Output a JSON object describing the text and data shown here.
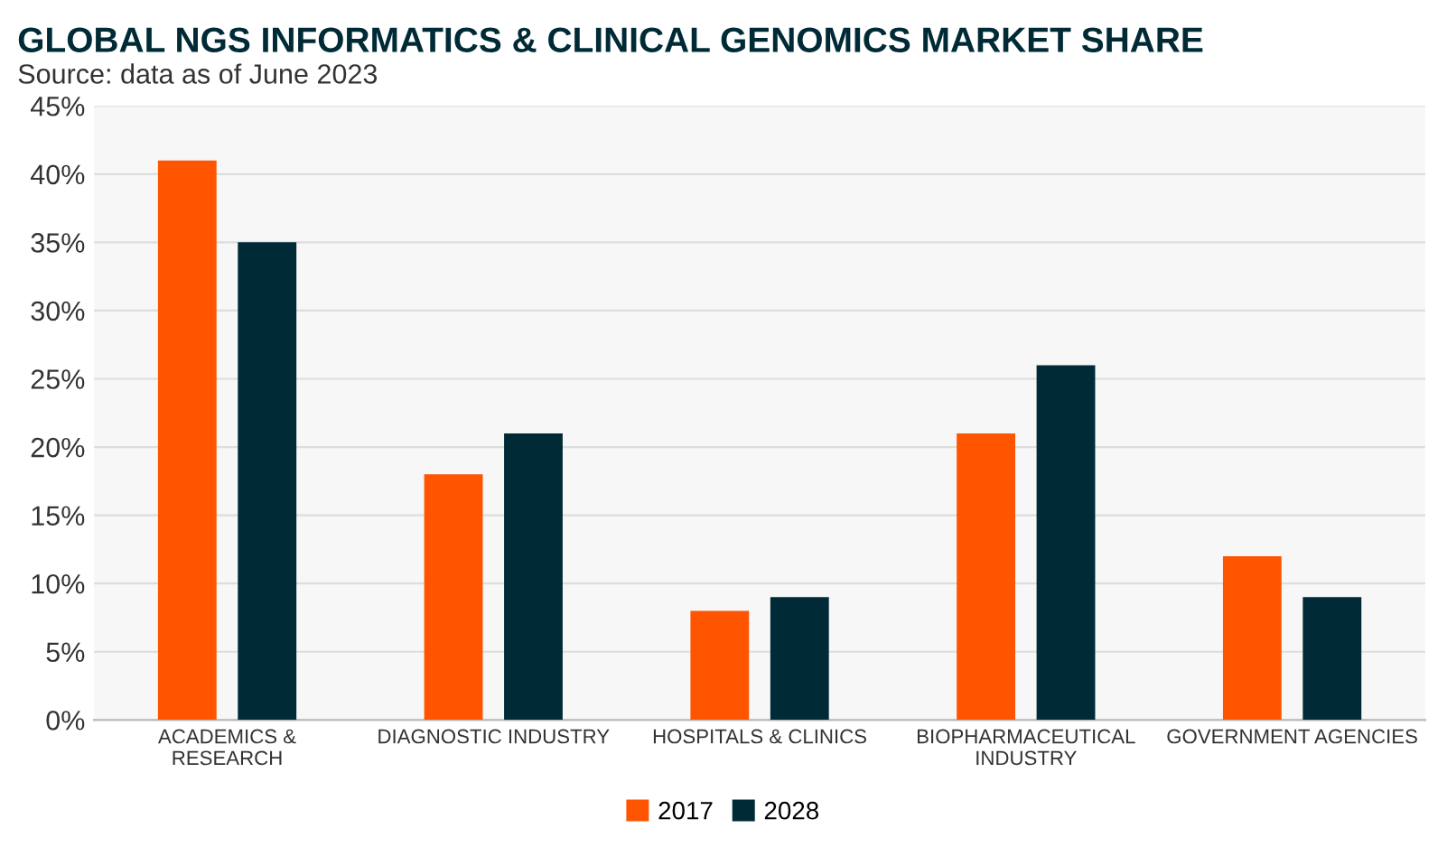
{
  "chart_data": {
    "type": "bar",
    "title": "GLOBAL NGS INFORMATICS & CLINICAL GENOMICS MARKET SHARE",
    "subtitle": "Source: data as of June 2023",
    "categories": [
      "ACADEMICS & RESEARCH",
      "DIAGNOSTIC INDUSTRY",
      "HOSPITALS & CLINICS",
      "BIOPHARMACEUTICAL INDUSTRY",
      "GOVERNMENT AGENCIES"
    ],
    "series": [
      {
        "name": "2017",
        "color": "#ff5500",
        "values": [
          41,
          18,
          8,
          21,
          12
        ]
      },
      {
        "name": "2028",
        "color": "#002b36",
        "values": [
          35,
          21,
          9,
          26,
          9
        ]
      }
    ],
    "ylim": [
      0,
      45
    ],
    "yticks": [
      {
        "value": 0,
        "label": "0%"
      },
      {
        "value": 5,
        "label": "5%"
      },
      {
        "value": 10,
        "label": "10%"
      },
      {
        "value": 15,
        "label": "15%"
      },
      {
        "value": 20,
        "label": "20%"
      },
      {
        "value": 25,
        "label": "25%"
      },
      {
        "value": 30,
        "label": "30%"
      },
      {
        "value": 35,
        "label": "35%"
      },
      {
        "value": 40,
        "label": "40%"
      },
      {
        "value": 45,
        "label": "45%"
      }
    ],
    "grid": "y",
    "legend": "bottom"
  }
}
